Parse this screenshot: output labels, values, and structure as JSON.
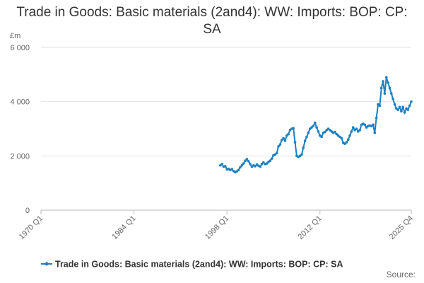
{
  "chart_data": {
    "type": "line",
    "title": "Trade in Goods: Basic materials (2and4): WW: Imports: BOP: CP: SA",
    "y_label": "£m",
    "source": "Source:",
    "categories": [
      "1970 Q1",
      null,
      null,
      null,
      null,
      null,
      null,
      null,
      null,
      null,
      null,
      null,
      null,
      null,
      null,
      null,
      null,
      null,
      null,
      null,
      null,
      null,
      null,
      null,
      null,
      null,
      null,
      null,
      null,
      null,
      null,
      null,
      null,
      null,
      null,
      null,
      null,
      null,
      null,
      null,
      null,
      null,
      null,
      null,
      null,
      null,
      null,
      null,
      null,
      null,
      null,
      null,
      null,
      null,
      null,
      null,
      "1984 Q1",
      null,
      null,
      null,
      null,
      null,
      null,
      null,
      null,
      null,
      null,
      null,
      null,
      null,
      null,
      null,
      null,
      null,
      null,
      null,
      null,
      null,
      null,
      null,
      null,
      null,
      null,
      null,
      null,
      null,
      null,
      null,
      null,
      null,
      null,
      null,
      null,
      null,
      null,
      null,
      null,
      null,
      null,
      null,
      null,
      null,
      null,
      null,
      null,
      null,
      null,
      null,
      null,
      null,
      null,
      null,
      "1998 Q1",
      null,
      null,
      null,
      null,
      null,
      null,
      null,
      null,
      null,
      null,
      null,
      null,
      null,
      null,
      null,
      null,
      null,
      null,
      null,
      null,
      null,
      null,
      null,
      null,
      null,
      null,
      null,
      null,
      null,
      null,
      null,
      null,
      null,
      null,
      null,
      null,
      null,
      null,
      null,
      null,
      null,
      null,
      null,
      null,
      null,
      null,
      null,
      null,
      null,
      null,
      null,
      null,
      null,
      null,
      null,
      "2012 Q1",
      null,
      null,
      null,
      null,
      null,
      null,
      null,
      null,
      null,
      null,
      null,
      null,
      null,
      null,
      null,
      null,
      null,
      null,
      null,
      null,
      null,
      null,
      null,
      null,
      null,
      null,
      null,
      null,
      null,
      null,
      null,
      null,
      null,
      null,
      null,
      null,
      null,
      null,
      null,
      null,
      null,
      null,
      null,
      null,
      null,
      null,
      null,
      null,
      null,
      null,
      null,
      null,
      null,
      null,
      "2025 Q4"
    ],
    "series": [
      {
        "name": "Trade in Goods: Basic materials (2and4): WW: Imports: BOP: CP: SA",
        "color": "#1c80c0",
        "values": [
          null,
          null,
          null,
          null,
          null,
          null,
          null,
          null,
          null,
          null,
          null,
          null,
          null,
          null,
          null,
          null,
          null,
          null,
          null,
          null,
          null,
          null,
          null,
          null,
          null,
          null,
          null,
          null,
          null,
          null,
          null,
          null,
          null,
          null,
          null,
          null,
          null,
          null,
          null,
          null,
          null,
          null,
          null,
          null,
          null,
          null,
          null,
          null,
          null,
          null,
          null,
          null,
          null,
          null,
          null,
          null,
          null,
          null,
          null,
          null,
          null,
          null,
          null,
          null,
          null,
          null,
          null,
          null,
          null,
          null,
          null,
          null,
          null,
          null,
          null,
          null,
          null,
          null,
          null,
          null,
          null,
          null,
          null,
          null,
          null,
          null,
          null,
          null,
          null,
          null,
          null,
          null,
          null,
          null,
          null,
          null,
          null,
          null,
          null,
          null,
          null,
          null,
          null,
          null,
          null,
          null,
          null,
          null,
          1650,
          1700,
          1600,
          1620,
          1500,
          1520,
          1480,
          1510,
          1440,
          1400,
          1430,
          1480,
          1580,
          1650,
          1720,
          1820,
          1880,
          1800,
          1700,
          1600,
          1650,
          1620,
          1680,
          1640,
          1600,
          1700,
          1760,
          1700,
          1720,
          1780,
          1820,
          1900,
          2020,
          2050,
          2100,
          2350,
          2420,
          2580,
          2650,
          2560,
          2750,
          2800,
          2950,
          3000,
          3020,
          2500,
          2000,
          1960,
          2000,
          2050,
          2300,
          2550,
          2700,
          2850,
          3000,
          3050,
          3100,
          3220,
          3050,
          2900,
          2750,
          2700,
          2850,
          2880,
          2950,
          3000,
          2950,
          2900,
          2850,
          2880,
          2800,
          2750,
          2700,
          2650,
          2480,
          2450,
          2500,
          2600,
          2750,
          2900,
          3050,
          2950,
          3000,
          2900,
          2950,
          3150,
          3180,
          3150,
          3050,
          3100,
          3120,
          3100,
          3150,
          2850,
          3400,
          3900,
          3850,
          4500,
          4750,
          4300,
          4900,
          4700,
          4500,
          4300,
          4100,
          3900,
          3750,
          3700,
          3800,
          3650,
          3800,
          3600,
          3750,
          3700,
          3850,
          4000
        ]
      }
    ],
    "ylim": [
      0,
      6000
    ],
    "yticks": [
      0,
      {
        "value": 2000,
        "label": "2 000"
      },
      {
        "value": 4000,
        "label": "4 000"
      },
      {
        "value": 6000,
        "label": "6 000"
      }
    ],
    "grid": true
  }
}
